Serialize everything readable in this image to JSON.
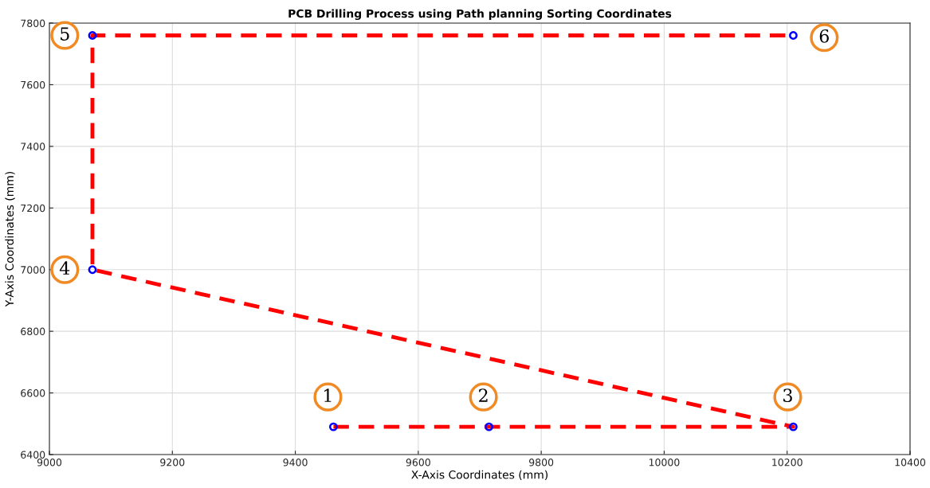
{
  "chart_data": {
    "type": "line",
    "title": "PCB Drilling Process using Path planning Sorting Coordinates",
    "xlabel": "X-Axis Coordinates (mm)",
    "ylabel": "Y-Axis Coordinates (mm)",
    "x": [
      9462,
      9715,
      10210,
      9070,
      9070,
      10210
    ],
    "series": [
      {
        "color": "#ff0000",
        "line_style": "dashed",
        "marker": "none",
        "values": [
          6490,
          6490,
          6490,
          7000,
          7760,
          7760
        ]
      },
      {
        "type": "scatter",
        "color": "#0000ff",
        "marker": "circle",
        "values": [
          6490,
          6490,
          6490,
          7000,
          7760,
          7760
        ]
      }
    ],
    "xlim": [
      9000,
      10400
    ],
    "xticks": [
      9000,
      9200,
      9400,
      9600,
      9800,
      10000,
      10200,
      10400
    ],
    "ylim": [
      6400,
      7800
    ],
    "yticks": [
      6400,
      6600,
      6800,
      7000,
      7200,
      7400,
      7600,
      7800
    ],
    "grid": true,
    "annotations": [
      {
        "text": "1",
        "x": 9462,
        "y": 6490
      },
      {
        "text": "2",
        "x": 9715,
        "y": 6490
      },
      {
        "text": "3",
        "x": 10210,
        "y": 6490
      },
      {
        "text": "4",
        "x": 9070,
        "y": 7000
      },
      {
        "text": "5",
        "x": 9070,
        "y": 7760
      },
      {
        "text": "6",
        "x": 10210,
        "y": 7760
      }
    ]
  }
}
